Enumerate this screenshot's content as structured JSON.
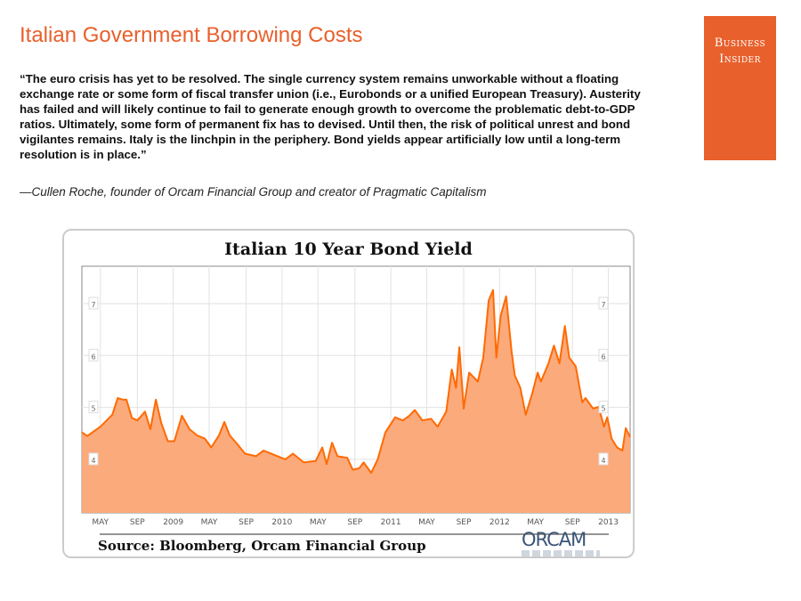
{
  "page": {
    "title": "Italian Government Borrowing Costs",
    "quote": "“The euro crisis has yet to be resolved. The single currency system remains unworkable without a floating exchange rate or some form of fiscal transfer union (i.e., Eurobonds or a unified European Treasury). Austerity has failed and will likely continue to fail to generate enough growth to overcome the problematic debt-to-GDP ratios. Ultimately, some form of permanent fix has to devised. Until then, the risk of political unrest and bond vigilantes remains. Italy is the linchpin in the periphery. Bond yields appear artificially low until a long-term resolution is in place.”",
    "attribution": "—Cullen Roche, founder of Orcam Financial Group and creator of Pragmatic Capitalism",
    "logo": {
      "line1": "Business",
      "line2": "Insider",
      "color": "#e8602c"
    }
  },
  "chart_data": {
    "type": "area",
    "title": "Italian 10 Year Bond Yield",
    "source": "Source: Bloomberg, Orcam Financial Group",
    "source_logo": "ORCAM",
    "xlabel": "",
    "ylabel": "",
    "xlim": [
      2008.16,
      2013.2
    ],
    "ylim": [
      2.97,
      7.72
    ],
    "line_color": "#ff6a00",
    "fill_color": "#fbaa7c",
    "yticks": [
      4,
      5,
      6,
      7
    ],
    "yticklabels": [
      "4",
      "5",
      "6",
      "7"
    ],
    "xticks": [
      2008.33,
      2008.67,
      2009.0,
      2009.33,
      2009.67,
      2010.0,
      2010.33,
      2010.67,
      2011.0,
      2011.33,
      2011.67,
      2012.0,
      2012.33,
      2012.67,
      2013.0
    ],
    "xticklabels": [
      "MAY",
      "SEP",
      "2009",
      "MAY",
      "SEP",
      "2010",
      "MAY",
      "SEP",
      "2011",
      "MAY",
      "SEP",
      "2012",
      "MAY",
      "SEP",
      "2013"
    ],
    "x": [
      2008.16,
      2008.21,
      2008.33,
      2008.44,
      2008.49,
      2008.54,
      2008.57,
      2008.62,
      2008.67,
      2008.74,
      2008.79,
      2008.84,
      2008.89,
      2008.95,
      2009.01,
      2009.08,
      2009.15,
      2009.22,
      2009.29,
      2009.35,
      2009.42,
      2009.47,
      2009.52,
      2009.59,
      2009.66,
      2009.76,
      2009.83,
      2010.03,
      2010.1,
      2010.2,
      2010.31,
      2010.37,
      2010.41,
      2010.46,
      2010.51,
      2010.6,
      2010.65,
      2010.71,
      2010.75,
      2010.82,
      2010.88,
      2010.95,
      2011.04,
      2011.11,
      2011.17,
      2011.22,
      2011.29,
      2011.37,
      2011.43,
      2011.51,
      2011.56,
      2011.6,
      2011.63,
      2011.67,
      2011.72,
      2011.8,
      2011.85,
      2011.9,
      2011.94,
      2011.97,
      2012.01,
      2012.06,
      2012.11,
      2012.14,
      2012.19,
      2012.24,
      2012.3,
      2012.35,
      2012.38,
      2012.45,
      2012.5,
      2012.55,
      2012.6,
      2012.64,
      2012.7,
      2012.76,
      2012.79,
      2012.86,
      2012.91,
      2012.96,
      2012.99,
      2013.03,
      2013.08,
      2013.13,
      2013.16,
      2013.2
    ],
    "y": [
      4.52,
      4.45,
      4.63,
      4.86,
      5.18,
      5.15,
      5.15,
      4.8,
      4.75,
      4.92,
      4.58,
      5.15,
      4.7,
      4.35,
      4.35,
      4.84,
      4.58,
      4.46,
      4.4,
      4.23,
      4.46,
      4.72,
      4.46,
      4.29,
      4.11,
      4.06,
      4.17,
      4.0,
      4.11,
      3.94,
      3.97,
      4.23,
      3.91,
      4.32,
      4.06,
      4.03,
      3.8,
      3.83,
      3.94,
      3.74,
      4.0,
      4.52,
      4.81,
      4.75,
      4.84,
      4.95,
      4.75,
      4.78,
      4.63,
      4.92,
      5.73,
      5.38,
      6.16,
      4.98,
      5.67,
      5.5,
      5.96,
      7.06,
      7.26,
      5.96,
      6.77,
      7.14,
      6.08,
      5.62,
      5.38,
      4.86,
      5.27,
      5.67,
      5.5,
      5.85,
      6.19,
      5.85,
      6.57,
      5.96,
      5.79,
      5.1,
      5.18,
      4.98,
      5.01,
      4.63,
      4.81,
      4.4,
      4.23,
      4.17,
      4.6,
      4.43
    ]
  }
}
